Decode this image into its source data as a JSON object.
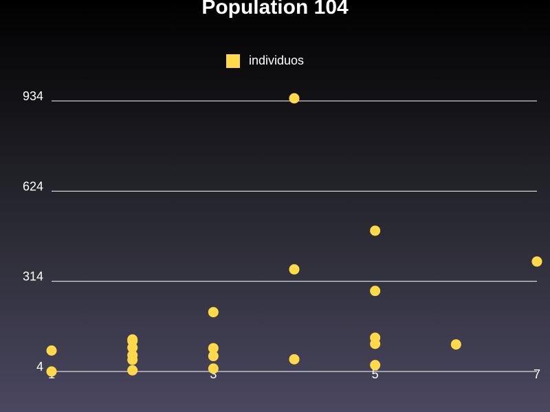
{
  "chart_data": {
    "type": "scatter",
    "title": "Population 104",
    "legend": {
      "label": "individuos",
      "color": "#ffd94a",
      "position": "top-center"
    },
    "yticks": [
      "4",
      "314",
      "624",
      "934"
    ],
    "xticks": [
      "1",
      "3",
      "5",
      "7"
    ],
    "xlim": [
      1,
      7
    ],
    "ylim": [
      4,
      934
    ],
    "grid": true,
    "series": [
      {
        "name": "individuos",
        "points": [
          {
            "x": 1,
            "y": 4
          },
          {
            "x": 1,
            "y": 76
          },
          {
            "x": 2,
            "y": 8
          },
          {
            "x": 2,
            "y": 44
          },
          {
            "x": 2,
            "y": 60
          },
          {
            "x": 2,
            "y": 86
          },
          {
            "x": 2,
            "y": 114
          },
          {
            "x": 2,
            "y": 109
          },
          {
            "x": 3,
            "y": 14
          },
          {
            "x": 3,
            "y": 57
          },
          {
            "x": 3,
            "y": 84
          },
          {
            "x": 3,
            "y": 208
          },
          {
            "x": 4,
            "y": 943
          },
          {
            "x": 4,
            "y": 355
          },
          {
            "x": 4,
            "y": 46
          },
          {
            "x": 5,
            "y": 488
          },
          {
            "x": 5,
            "y": 281
          },
          {
            "x": 5,
            "y": 120
          },
          {
            "x": 5,
            "y": 99
          },
          {
            "x": 5,
            "y": 26
          },
          {
            "x": 6,
            "y": 97
          },
          {
            "x": 7,
            "y": 382
          }
        ]
      }
    ]
  }
}
